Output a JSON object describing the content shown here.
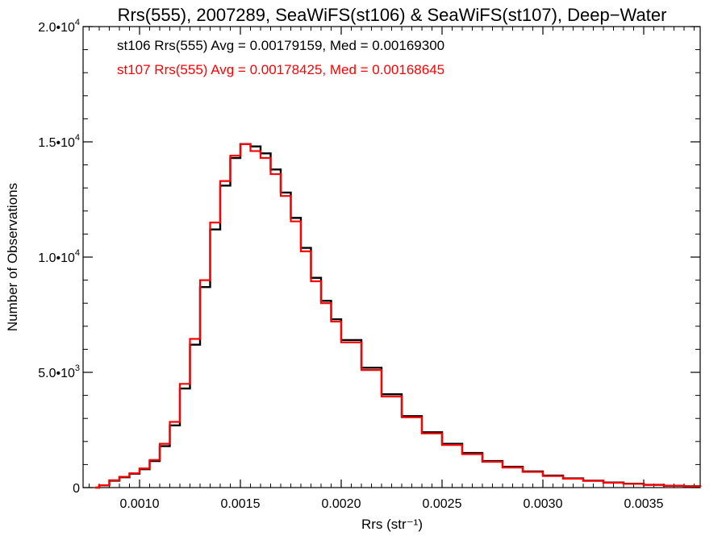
{
  "chart_data": {
    "type": "line",
    "title": "Rrs(555), 2007289, SeaWiFS(st106) & SeaWiFS(st107), Deep−Water",
    "xlabel": "Rrs (str⁻¹)",
    "ylabel": "Number of Observations",
    "xlim": [
      0.00072,
      0.00378
    ],
    "ylim": [
      0,
      20000
    ],
    "xticks": [
      0.001,
      0.0015,
      0.002,
      0.0025,
      0.003,
      0.0035
    ],
    "xtick_labels": [
      "0.0010",
      "0.0015",
      "0.0020",
      "0.0025",
      "0.0030",
      "0.0035"
    ],
    "yticks": [
      0,
      5000,
      10000,
      15000,
      20000
    ],
    "ytick_labels": [
      {
        "base": "0",
        "exp": ""
      },
      {
        "base": "5.0•10",
        "exp": "3"
      },
      {
        "base": "1.0•10",
        "exp": "4"
      },
      {
        "base": "1.5•10",
        "exp": "4"
      },
      {
        "base": "2.0•10",
        "exp": "4"
      }
    ],
    "grid": false,
    "legend_position": "top-left",
    "annotations": [
      {
        "text": "st106 Rrs(555) Avg = 0.00179159, Med = 0.00169300",
        "color": "#000000"
      },
      {
        "text": "st107 Rrs(555) Avg = 0.00178425, Med = 0.00168645",
        "color": "#ff0000"
      }
    ],
    "x": [
      0.00078,
      0.0008,
      0.00085,
      0.0009,
      0.00095,
      0.001,
      0.00105,
      0.0011,
      0.00115,
      0.0012,
      0.00125,
      0.0013,
      0.00135,
      0.0014,
      0.00145,
      0.0015,
      0.00155,
      0.0016,
      0.00165,
      0.0017,
      0.00175,
      0.0018,
      0.00185,
      0.0019,
      0.00195,
      0.002,
      0.0021,
      0.0022,
      0.0023,
      0.0024,
      0.0025,
      0.0026,
      0.0027,
      0.0028,
      0.0029,
      0.003,
      0.0031,
      0.0032,
      0.0033,
      0.0034,
      0.0035,
      0.0036,
      0.0037,
      0.00378
    ],
    "series": [
      {
        "name": "st106",
        "color": "#000000",
        "values": [
          0,
          100,
          300,
          450,
          600,
          800,
          1150,
          1800,
          2700,
          4300,
          6200,
          8700,
          11200,
          13100,
          14300,
          14900,
          14800,
          14500,
          13800,
          12800,
          11700,
          10400,
          9100,
          8100,
          7300,
          6400,
          5200,
          4050,
          3100,
          2400,
          1900,
          1500,
          1150,
          900,
          700,
          520,
          400,
          300,
          220,
          170,
          120,
          80,
          60,
          40
        ]
      },
      {
        "name": "st107",
        "color": "#ff0000",
        "values": [
          0,
          100,
          320,
          470,
          620,
          830,
          1200,
          1900,
          2850,
          4500,
          6450,
          9000,
          11500,
          13300,
          14400,
          14900,
          14600,
          14300,
          13600,
          12650,
          11550,
          10250,
          8950,
          8000,
          7200,
          6300,
          5100,
          3950,
          3050,
          2350,
          1850,
          1450,
          1120,
          870,
          680,
          500,
          385,
          290,
          210,
          160,
          115,
          78,
          55,
          38
        ]
      }
    ]
  }
}
